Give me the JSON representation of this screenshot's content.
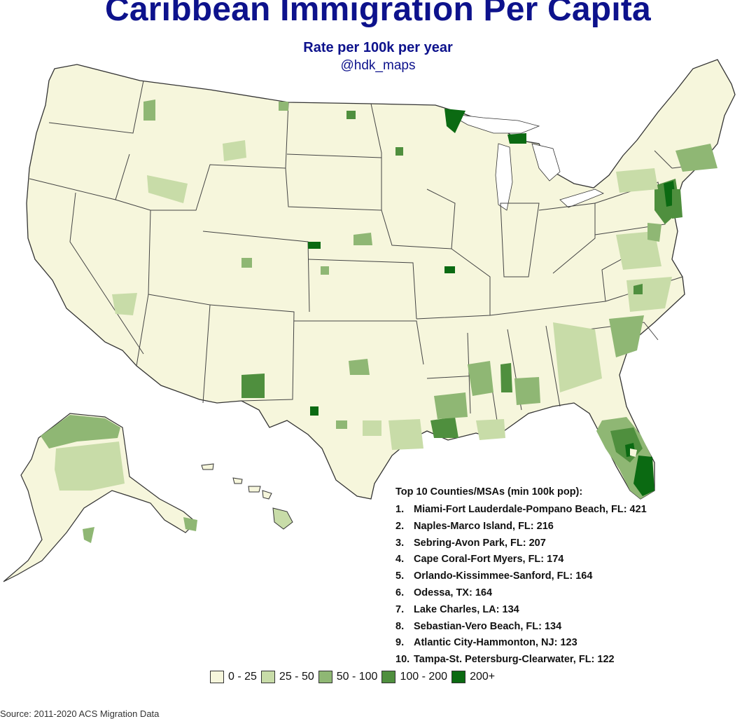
{
  "title": "Caribbean Immigration Per Capita",
  "subtitle": "Rate per 100k per year",
  "handle": "@hdk_maps",
  "legend": {
    "items": [
      {
        "label": "0 - 25",
        "color": "#f6f6dc"
      },
      {
        "label": "25 - 50",
        "color": "#c8dca8"
      },
      {
        "label": "50 - 100",
        "color": "#8fb774"
      },
      {
        "label": "100 - 200",
        "color": "#4f8f3e"
      },
      {
        "label": "200+",
        "color": "#0b6a12"
      }
    ]
  },
  "top_ten": {
    "heading": "Top 10 Counties/MSAs (min 100k pop):",
    "items": [
      {
        "rank": "1.",
        "name": "Miami-Fort Lauderdale-Pompano Beach, FL: 421"
      },
      {
        "rank": "2.",
        "name": "Naples-Marco Island, FL: 216"
      },
      {
        "rank": "3.",
        "name": "Sebring-Avon Park, FL: 207"
      },
      {
        "rank": "4.",
        "name": "Cape Coral-Fort Myers, FL: 174"
      },
      {
        "rank": "5.",
        "name": "Orlando-Kissimmee-Sanford, FL: 164"
      },
      {
        "rank": "6.",
        "name": "Odessa, TX: 164"
      },
      {
        "rank": "7.",
        "name": "Lake Charles, LA: 134"
      },
      {
        "rank": "8.",
        "name": "Sebastian-Vero Beach, FL: 134"
      },
      {
        "rank": "9.",
        "name": "Atlantic City-Hammonton, NJ: 123"
      },
      {
        "rank": "10.",
        "name": "Tampa-St. Petersburg-Clearwater, FL: 122"
      }
    ]
  },
  "source": "Source: 2011-2020 ACS Migration Data",
  "colors": {
    "title": "#0d128c",
    "land": "#f6f6dc",
    "border": "#333333"
  }
}
